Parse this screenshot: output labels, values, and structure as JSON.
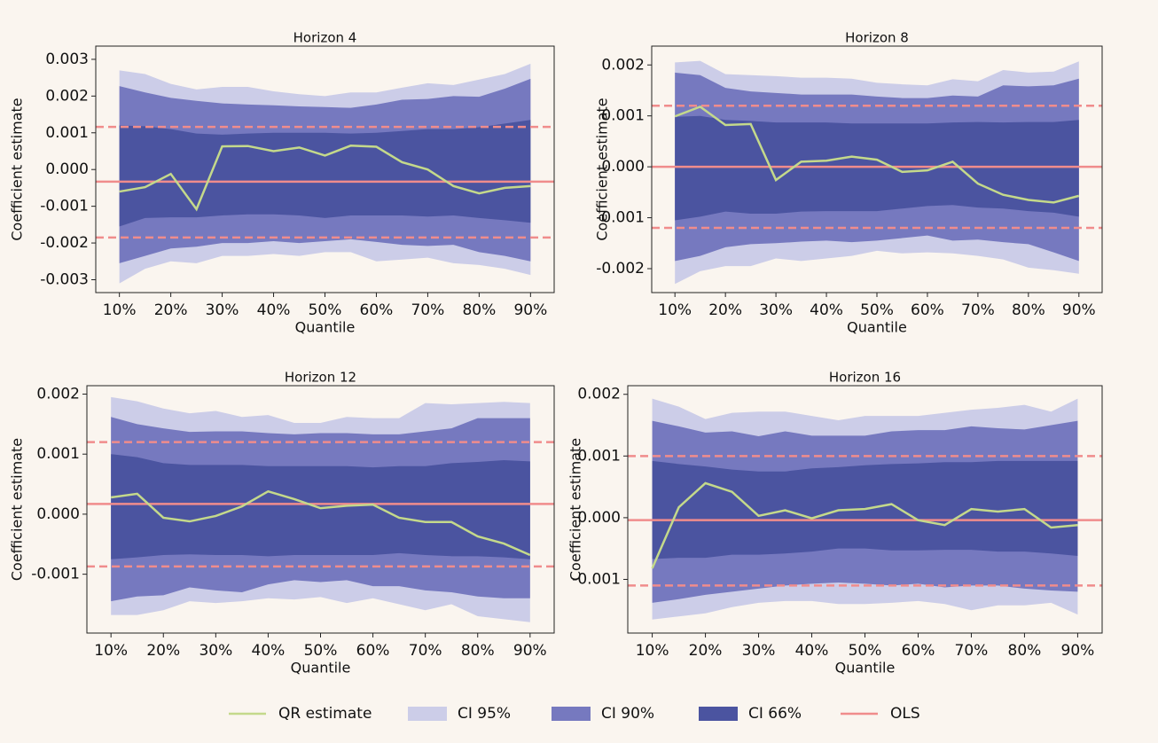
{
  "chart_data": [
    {
      "type": "line",
      "title": "Horizon 4",
      "xlabel": "Quantile",
      "ylabel": "Coefficient estimate",
      "x": [
        10,
        15,
        20,
        25,
        30,
        35,
        40,
        45,
        50,
        55,
        60,
        65,
        70,
        75,
        80,
        85,
        90
      ],
      "xlim": [
        5.4,
        94.6
      ],
      "xticks": [
        {
          "value": 10,
          "label": "10%"
        },
        {
          "value": 20,
          "label": "20%"
        },
        {
          "value": 30,
          "label": "30%"
        },
        {
          "value": 40,
          "label": "40%"
        },
        {
          "value": 50,
          "label": "50%"
        },
        {
          "value": 60,
          "label": "60%"
        },
        {
          "value": 70,
          "label": "70%"
        },
        {
          "value": 80,
          "label": "80%"
        },
        {
          "value": 90,
          "label": "90%"
        }
      ],
      "ylim": [
        -0.00335,
        0.00336
      ],
      "yticks": [
        0.003,
        0.002,
        0.001,
        {
          "value": 0,
          "label": "0.000"
        },
        -0.001,
        -0.002,
        -0.003
      ],
      "series": [
        {
          "name": "QR estimate",
          "color": "#c4d98b",
          "values": [
            -0.0006,
            -0.00048,
            -0.00012,
            -0.00108,
            0.00063,
            0.00064,
            0.0005,
            0.0006,
            0.00038,
            0.00065,
            0.00062,
            0.0002,
            0.0,
            -0.00045,
            -0.00065,
            -0.0005,
            -0.00045
          ]
        },
        {
          "name": "CI 95%",
          "color": "#cccde8",
          "upper": [
            0.0027,
            0.0026,
            0.00233,
            0.00218,
            0.00225,
            0.00225,
            0.00213,
            0.00205,
            0.002,
            0.0021,
            0.0021,
            0.00223,
            0.00235,
            0.0023,
            0.00245,
            0.0026,
            0.00288
          ],
          "lower": [
            -0.0031,
            -0.0027,
            -0.0025,
            -0.00255,
            -0.00235,
            -0.00235,
            -0.0023,
            -0.00235,
            -0.00225,
            -0.00225,
            -0.0025,
            -0.00245,
            -0.0024,
            -0.00255,
            -0.0026,
            -0.0027,
            -0.00287
          ]
        },
        {
          "name": "CI 90%",
          "color": "#7679bf",
          "upper": [
            0.00227,
            0.0021,
            0.00195,
            0.00187,
            0.0018,
            0.00177,
            0.00175,
            0.00172,
            0.0017,
            0.00168,
            0.00177,
            0.0019,
            0.00192,
            0.002,
            0.00198,
            0.0022,
            0.00247
          ],
          "lower": [
            -0.00255,
            -0.00235,
            -0.00215,
            -0.0021,
            -0.002,
            -0.002,
            -0.00195,
            -0.002,
            -0.00195,
            -0.0019,
            -0.00197,
            -0.00205,
            -0.00208,
            -0.00205,
            -0.00225,
            -0.00235,
            -0.0025
          ]
        },
        {
          "name": "CI 66%",
          "color": "#4b54a0",
          "upper": [
            0.0012,
            0.00118,
            0.0011,
            0.00098,
            0.00095,
            0.00098,
            0.001,
            0.001,
            0.001,
            0.00098,
            0.001,
            0.00105,
            0.0011,
            0.0011,
            0.00115,
            0.00125,
            0.00135
          ],
          "lower": [
            -0.00155,
            -0.00132,
            -0.0013,
            -0.0013,
            -0.00125,
            -0.00122,
            -0.00122,
            -0.00125,
            -0.00132,
            -0.00125,
            -0.00125,
            -0.00125,
            -0.00128,
            -0.00125,
            -0.00132,
            -0.00138,
            -0.00145
          ]
        },
        {
          "name": "OLS",
          "color": "#f08c8c",
          "value": -0.00033,
          "lower": -0.00185,
          "upper": 0.00116
        }
      ]
    },
    {
      "type": "line",
      "title": "Horizon 8",
      "xlabel": "Quantile",
      "ylabel": "Coefficient estimate",
      "x": [
        10,
        15,
        20,
        25,
        30,
        35,
        40,
        45,
        50,
        55,
        60,
        65,
        70,
        75,
        80,
        85,
        90
      ],
      "xlim": [
        5.4,
        94.6
      ],
      "xticks": [
        {
          "value": 10,
          "label": "10%"
        },
        {
          "value": 20,
          "label": "20%"
        },
        {
          "value": 30,
          "label": "30%"
        },
        {
          "value": 40,
          "label": "40%"
        },
        {
          "value": 50,
          "label": "50%"
        },
        {
          "value": 60,
          "label": "60%"
        },
        {
          "value": 70,
          "label": "70%"
        },
        {
          "value": 80,
          "label": "80%"
        },
        {
          "value": 90,
          "label": "90%"
        }
      ],
      "ylim": [
        -0.00247,
        0.00237
      ],
      "yticks": [
        0.002,
        0.001,
        {
          "value": 0,
          "label": "0.000"
        },
        -0.001,
        -0.002
      ],
      "series": [
        {
          "name": "QR estimate",
          "color": "#c4d98b",
          "values": [
            0.00099,
            0.00118,
            0.00082,
            0.00084,
            -0.00026,
            0.0001,
            0.00012,
            0.0002,
            0.00014,
            -0.0001,
            -7e-05,
            0.0001,
            -0.00033,
            -0.00055,
            -0.00065,
            -0.0007,
            -0.00057
          ]
        },
        {
          "name": "CI 95%",
          "color": "#cccde8",
          "upper": [
            0.00205,
            0.00208,
            0.00182,
            0.0018,
            0.00178,
            0.00175,
            0.00175,
            0.00173,
            0.00165,
            0.00162,
            0.0016,
            0.00172,
            0.00168,
            0.0019,
            0.00185,
            0.00187,
            0.00207
          ],
          "lower": [
            -0.0023,
            -0.00205,
            -0.00195,
            -0.00195,
            -0.0018,
            -0.00185,
            -0.0018,
            -0.00175,
            -0.00165,
            -0.0017,
            -0.00168,
            -0.0017,
            -0.00175,
            -0.00182,
            -0.00198,
            -0.00203,
            -0.0021
          ]
        },
        {
          "name": "CI 90%",
          "color": "#7679bf",
          "upper": [
            0.00185,
            0.0018,
            0.00155,
            0.00148,
            0.00145,
            0.00142,
            0.00142,
            0.00142,
            0.00138,
            0.00135,
            0.00135,
            0.0014,
            0.00138,
            0.0016,
            0.00158,
            0.0016,
            0.00173
          ],
          "lower": [
            -0.00185,
            -0.00175,
            -0.00158,
            -0.00152,
            -0.0015,
            -0.00147,
            -0.00145,
            -0.00148,
            -0.00145,
            -0.0014,
            -0.00135,
            -0.00145,
            -0.00143,
            -0.00148,
            -0.00152,
            -0.00168,
            -0.00185
          ]
        },
        {
          "name": "CI 66%",
          "color": "#4b54a0",
          "upper": [
            0.00098,
            0.001,
            0.00092,
            0.0009,
            0.00087,
            0.00087,
            0.00087,
            0.00085,
            0.00085,
            0.00085,
            0.00085,
            0.00087,
            0.00088,
            0.00087,
            0.00088,
            0.00088,
            0.00092
          ],
          "lower": [
            -0.00105,
            -0.00098,
            -0.00088,
            -0.00092,
            -0.00092,
            -0.00088,
            -0.00087,
            -0.00087,
            -0.00087,
            -0.00082,
            -0.00077,
            -0.00075,
            -0.0008,
            -0.00082,
            -0.00087,
            -0.0009,
            -0.00098
          ]
        },
        {
          "name": "OLS",
          "color": "#f08c8c",
          "value": 0.0,
          "lower": -0.0012,
          "upper": 0.0012
        }
      ]
    },
    {
      "type": "line",
      "title": "Horizon 12",
      "xlabel": "Quantile",
      "ylabel": "Coefficient estimate",
      "x": [
        10,
        15,
        20,
        25,
        30,
        35,
        40,
        45,
        50,
        55,
        60,
        65,
        70,
        75,
        80,
        85,
        90
      ],
      "xlim": [
        5.4,
        94.6
      ],
      "xticks": [
        {
          "value": 10,
          "label": "10%"
        },
        {
          "value": 20,
          "label": "20%"
        },
        {
          "value": 30,
          "label": "30%"
        },
        {
          "value": 40,
          "label": "40%"
        },
        {
          "value": 50,
          "label": "50%"
        },
        {
          "value": 60,
          "label": "60%"
        },
        {
          "value": 70,
          "label": "70%"
        },
        {
          "value": 80,
          "label": "80%"
        },
        {
          "value": 90,
          "label": "90%"
        }
      ],
      "ylim": [
        -0.00198,
        0.00214
      ],
      "yticks": [
        0.002,
        0.001,
        {
          "value": 0,
          "label": "0.000"
        },
        -0.001
      ],
      "series": [
        {
          "name": "QR estimate",
          "color": "#c4d98b",
          "values": [
            0.00028,
            0.00034,
            -6e-05,
            -0.00012,
            -3e-05,
            0.00013,
            0.00038,
            0.00025,
            0.0001,
            0.00014,
            0.00016,
            -6e-05,
            -0.00013,
            -0.00013,
            -0.00037,
            -0.00049,
            -0.00068
          ]
        },
        {
          "name": "CI 95%",
          "color": "#cccde8",
          "upper": [
            0.00195,
            0.00188,
            0.00176,
            0.00168,
            0.00172,
            0.00162,
            0.00165,
            0.00152,
            0.00152,
            0.00162,
            0.0016,
            0.0016,
            0.00185,
            0.00183,
            0.00185,
            0.00187,
            0.00185
          ],
          "lower": [
            -0.00168,
            -0.00168,
            -0.0016,
            -0.00145,
            -0.00148,
            -0.00145,
            -0.0014,
            -0.00142,
            -0.00138,
            -0.00148,
            -0.0014,
            -0.0015,
            -0.0016,
            -0.0015,
            -0.0017,
            -0.00175,
            -0.0018
          ]
        },
        {
          "name": "CI 90%",
          "color": "#7679bf",
          "upper": [
            0.00162,
            0.0015,
            0.00143,
            0.00137,
            0.00138,
            0.00138,
            0.00135,
            0.00133,
            0.00135,
            0.00135,
            0.00133,
            0.00133,
            0.00138,
            0.00143,
            0.0016,
            0.0016,
            0.0016
          ],
          "lower": [
            -0.00145,
            -0.00137,
            -0.00135,
            -0.00122,
            -0.00127,
            -0.0013,
            -0.00117,
            -0.0011,
            -0.00113,
            -0.0011,
            -0.0012,
            -0.0012,
            -0.00127,
            -0.0013,
            -0.00137,
            -0.0014,
            -0.0014
          ]
        },
        {
          "name": "CI 66%",
          "color": "#4b54a0",
          "upper": [
            0.001,
            0.00095,
            0.00085,
            0.00082,
            0.00082,
            0.00082,
            0.0008,
            0.0008,
            0.0008,
            0.0008,
            0.00078,
            0.0008,
            0.0008,
            0.00085,
            0.00087,
            0.0009,
            0.00088
          ],
          "lower": [
            -0.00075,
            -0.00072,
            -0.00068,
            -0.00067,
            -0.00068,
            -0.00068,
            -0.0007,
            -0.00068,
            -0.00068,
            -0.00068,
            -0.00068,
            -0.00065,
            -0.00068,
            -0.0007,
            -0.0007,
            -0.00072,
            -0.00075
          ]
        },
        {
          "name": "OLS",
          "color": "#f08c8c",
          "value": 0.00017,
          "lower": -0.00087,
          "upper": 0.0012
        }
      ]
    },
    {
      "type": "line",
      "title": "Horizon 16",
      "xlabel": "Quantile",
      "ylabel": "Coefficient estimate",
      "x": [
        10,
        15,
        20,
        25,
        30,
        35,
        40,
        45,
        50,
        55,
        60,
        65,
        70,
        75,
        80,
        85,
        90
      ],
      "xlim": [
        5.4,
        94.6
      ],
      "xticks": [
        {
          "value": 10,
          "label": "10%"
        },
        {
          "value": 20,
          "label": "20%"
        },
        {
          "value": 30,
          "label": "30%"
        },
        {
          "value": 40,
          "label": "40%"
        },
        {
          "value": 50,
          "label": "50%"
        },
        {
          "value": 60,
          "label": "60%"
        },
        {
          "value": 70,
          "label": "70%"
        },
        {
          "value": 80,
          "label": "80%"
        },
        {
          "value": 90,
          "label": "90%"
        }
      ],
      "ylim": [
        -0.00187,
        0.00214
      ],
      "yticks": [
        0.002,
        0.001,
        {
          "value": 0,
          "label": "0.000"
        },
        -0.001
      ],
      "series": [
        {
          "name": "QR estimate",
          "color": "#c4d98b",
          "values": [
            -0.00082,
            0.00017,
            0.00056,
            0.00042,
            3e-05,
            0.00012,
            -1e-05,
            0.00012,
            0.00014,
            0.00022,
            -4e-05,
            -0.00012,
            0.00014,
            0.0001,
            0.00014,
            -0.00016,
            -0.00012
          ]
        },
        {
          "name": "CI 95%",
          "color": "#cccde8",
          "upper": [
            0.00193,
            0.0018,
            0.0016,
            0.0017,
            0.00172,
            0.00172,
            0.00165,
            0.00158,
            0.00165,
            0.00165,
            0.00165,
            0.0017,
            0.00175,
            0.00178,
            0.00183,
            0.00172,
            0.00193
          ],
          "lower": [
            -0.00165,
            -0.0016,
            -0.00155,
            -0.00145,
            -0.00138,
            -0.00135,
            -0.00135,
            -0.0014,
            -0.0014,
            -0.00138,
            -0.00135,
            -0.0014,
            -0.0015,
            -0.00142,
            -0.00142,
            -0.00138,
            -0.00157
          ]
        },
        {
          "name": "CI 90%",
          "color": "#7679bf",
          "upper": [
            0.00157,
            0.00148,
            0.00138,
            0.0014,
            0.00132,
            0.0014,
            0.00133,
            0.00133,
            0.00133,
            0.0014,
            0.00142,
            0.00142,
            0.00148,
            0.00145,
            0.00143,
            0.0015,
            0.00157
          ],
          "lower": [
            -0.00138,
            -0.00132,
            -0.00125,
            -0.0012,
            -0.00115,
            -0.0011,
            -0.00107,
            -0.00105,
            -0.00107,
            -0.0011,
            -0.00107,
            -0.00113,
            -0.0011,
            -0.0011,
            -0.00115,
            -0.00118,
            -0.0012
          ]
        },
        {
          "name": "CI 66%",
          "color": "#4b54a0",
          "upper": [
            0.00092,
            0.00087,
            0.00083,
            0.00078,
            0.00075,
            0.00075,
            0.0008,
            0.00082,
            0.00085,
            0.00087,
            0.00088,
            0.0009,
            0.0009,
            0.00092,
            0.00092,
            0.00092,
            0.00092
          ],
          "lower": [
            -0.00067,
            -0.00065,
            -0.00065,
            -0.0006,
            -0.0006,
            -0.00058,
            -0.00055,
            -0.0005,
            -0.0005,
            -0.00053,
            -0.00053,
            -0.00052,
            -0.00052,
            -0.00055,
            -0.00055,
            -0.00058,
            -0.00062
          ]
        },
        {
          "name": "OLS",
          "color": "#f08c8c",
          "value": -4e-05,
          "lower": -0.0011,
          "upper": 0.001
        }
      ]
    }
  ]
}
